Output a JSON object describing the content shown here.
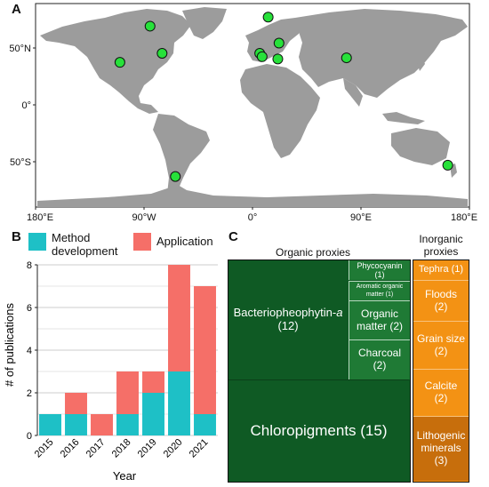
{
  "panels": {
    "a": "A",
    "b": "B",
    "c": "C"
  },
  "colors": {
    "land": "#9c9c9c",
    "ocean": "#ffffff",
    "point_fill": "#27e13a",
    "method": "#1ec0c6",
    "application": "#f56f68",
    "organic_dark": "#0f5a24",
    "organic_mid": "#1f7a35",
    "inorganic": "#f39214",
    "inorganic_dark": "#c76e0c"
  },
  "chart_data": [
    {
      "type": "scatter",
      "title": "",
      "x_ticks": [
        "180°E",
        "90°W",
        "0°",
        "90°E",
        "180°E"
      ],
      "y_ticks": [
        "50°N",
        "0°",
        "50°S"
      ],
      "xlim": [
        -180,
        180
      ],
      "ylim": [
        -90,
        90
      ],
      "series": [
        {
          "points": [
            {
              "lon": -85,
              "lat": 70
            },
            {
              "lon": 13,
              "lat": 78
            },
            {
              "lon": 22,
              "lat": 55
            },
            {
              "lon": -110,
              "lat": 38
            },
            {
              "lon": -75,
              "lat": 46
            },
            {
              "lon": 6,
              "lat": 46
            },
            {
              "lon": 8,
              "lat": 43
            },
            {
              "lon": 21,
              "lat": 41
            },
            {
              "lon": 78,
              "lat": 42
            },
            {
              "lon": -64,
              "lat": -63
            },
            {
              "lon": 162,
              "lat": -53
            }
          ]
        }
      ]
    },
    {
      "type": "bar",
      "stacked": true,
      "categories": [
        "2015",
        "2016",
        "2017",
        "2018",
        "2019",
        "2020",
        "2021"
      ],
      "series": [
        {
          "name": "Method development",
          "values": [
            1,
            1,
            0,
            1,
            2,
            3,
            1
          ]
        },
        {
          "name": "Application",
          "values": [
            0,
            1,
            1,
            2,
            1,
            5,
            6
          ]
        }
      ],
      "xlabel": "Year",
      "ylabel": "# of publications",
      "ylim": [
        0,
        8
      ],
      "y_ticks": [
        "0",
        "2",
        "4",
        "6",
        "8"
      ],
      "legend": "top",
      "grid": true
    },
    {
      "type": "treemap",
      "groups": [
        {
          "name": "Organic proxies",
          "items": [
            {
              "label": "Chloropigments",
              "count": "(15)"
            },
            {
              "label": "Bacteriopheophytin-a",
              "count": "(12)"
            },
            {
              "label": "Phycocyanin",
              "count": "(1)"
            },
            {
              "label": "Aromatic organic matter",
              "count": "(1)"
            },
            {
              "label": "Organic matter",
              "count": "(2)"
            },
            {
              "label": "Charcoal",
              "count": "(2)"
            }
          ]
        },
        {
          "name": "Inorganic proxies",
          "items": [
            {
              "label": "Tephra",
              "count": "(1)"
            },
            {
              "label": "Floods",
              "count": "(2)"
            },
            {
              "label": "Grain size",
              "count": "(2)"
            },
            {
              "label": "Calcite",
              "count": "(2)"
            },
            {
              "label": "Lithogenic minerals",
              "count": "(3)"
            }
          ]
        }
      ]
    }
  ],
  "labels": {
    "organic_title_line1": "Organic proxies",
    "inorganic_title_line1": "Inorganic",
    "inorganic_title_line2": "proxies",
    "legend_method_line1": "Method",
    "legend_method_line2": "development",
    "legend_application": "Application",
    "bacterio_line1": "Bacteriopheophytin-",
    "bacterio_italic": "a",
    "bacterio_count": "(12)",
    "chloro": "Chloropigments (15)",
    "phyco_line1": "Phycocyanin",
    "phyco_line2": "(1)",
    "aromatic_line1": "Aromatic organic",
    "aromatic_line2": "matter (1)",
    "om_line1": "Organic",
    "om_line2": "matter (2)",
    "charcoal_line1": "Charcoal",
    "charcoal_line2": "(2)",
    "tephra": "Tephra (1)",
    "floods_line1": "Floods",
    "floods_line2": "(2)",
    "grain_line1": "Grain size",
    "grain_line2": "(2)",
    "calcite_line1": "Calcite",
    "calcite_line2": "(2)",
    "litho_line1": "Lithogenic",
    "litho_line2": "minerals",
    "litho_line3": "(3)"
  }
}
